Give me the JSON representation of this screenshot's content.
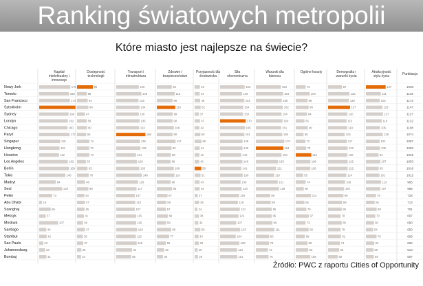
{
  "header": {
    "title": "Ranking światowych metropolii",
    "subtitle": "Które miasto jest najlepsze na świecie?"
  },
  "source": "Źródło: PWC z raportu Cities of Opportunity",
  "colors": {
    "bar": "#d4cfcb",
    "highlight": "#e36c09",
    "grid": "#dcdcdc",
    "banner": "#a6a6a6"
  },
  "chart_data": {
    "type": "bar",
    "total_label": "Punktacja",
    "categories": [
      "Nowy Jork",
      "Toronto",
      "San Francisco",
      "Sztokholm",
      "Sydney",
      "Londyn",
      "Chicago",
      "Paryż",
      "Singapur",
      "Hongkong",
      "Houston",
      "Los Angeles",
      "Berlin",
      "Tokio",
      "Madryt",
      "Seul",
      "Pekin",
      "Abu Dhabi",
      "Szanghaj",
      "Meksyk",
      "Moskwa",
      "Santiago",
      "Stambuł",
      "Sao Paulo",
      "Johannesburg",
      "Bombaj"
    ],
    "totals": [
      "1038",
      "1146",
      "1172",
      "1147",
      "1127",
      "1122",
      "1108",
      "1074",
      "1087",
      "1093",
      "1045",
      "1053",
      "1016",
      "1012",
      "965",
      "955",
      "728",
      "713",
      "701",
      "697",
      "690",
      "650",
      "609",
      "602",
      "513",
      "507"
    ],
    "series": [
      {
        "name": "Kapitał intelektualny i innowacje",
        "values": [
          176,
          168,
          174,
          205,
          166,
          162,
          160,
          172,
          118,
          115,
          112,
          162,
          169,
          148,
          94,
          130,
          73,
          16,
          65,
          37,
          107,
          40,
          42,
          23,
          33,
          41
        ],
        "highlight": "Sztokholm"
      },
      {
        "name": "Dostępność technologii",
        "values": [
          95,
          58,
          64,
          68,
          47,
          58,
          60,
          55,
          74,
          73,
          74,
          53,
          63,
          70,
          48,
          68,
          44,
          47,
          45,
          41,
          36,
          47,
          35,
          37,
          26,
          24
        ],
        "highlight": "Nowy Jork"
      },
      {
        "name": "Transport i infrastruktura",
        "values": [
          130,
          145,
          128,
          134,
          130,
          135,
          132,
          168,
          136,
          139,
          114,
          120,
          133,
          148,
          126,
          117,
          107,
          110,
          107,
          115,
          115,
          120,
          113,
          118,
          91,
          86
        ],
        "highlight": "Paryż"
      },
      {
        "name": "Zdrowie i bezpieczeństwo",
        "values": [
          93,
          112,
          98,
          115,
          99,
          98,
          106,
          98,
          117,
          92,
          88,
          86,
          106,
          110,
          86,
          95,
          67,
          59,
          57,
          69,
          58,
          90,
          77,
          56,
          46,
          38
        ],
        "highlight": "Sztokholm"
      },
      {
        "name": "Przyjazność dla środowiska",
        "values": [
          46,
          44,
          48,
          52,
          37,
          47,
          42,
          50,
          60,
          44,
          42,
          40,
          58,
          51,
          43,
          44,
          27,
          39,
          24,
          38,
          32,
          50,
          34,
          36,
          26,
          29
        ],
        "highlight": "Berlin"
      },
      {
        "name": "Siła ekonomiczna",
        "values": [
          163,
          146,
          161,
          154,
          153,
          170,
          165,
          161,
          149,
          149,
          141,
          148,
          141,
          150,
          136,
          143,
          126,
          118,
          131,
          122,
          107,
          133,
          104,
          128,
          113,
          114
        ],
        "highlight": "Londyn"
      },
      {
        "name": "Warunki dla biznesu",
        "values": [
          150,
          163,
          155,
          162,
          154,
          160,
          151,
          158,
          170,
          164,
          154,
          133,
          121,
          110,
          131,
          139,
          86,
          89,
          95,
          95,
          99,
          111,
          80,
          79,
          72,
          76
        ],
        "highlight": "Hongkong"
      },
      {
        "name": "Ogólne koszty",
        "values": [
          73,
          104,
          88,
          96,
          84,
          65,
          90,
          58,
          72,
          78,
          116,
          109,
          108,
          55,
          74,
          60,
          114,
          65,
          79,
          97,
          73,
          96,
          68,
          88,
          93,
          108
        ],
        "highlight": "Houston"
      },
      {
        "name": "Demografia i warunki życia",
        "values": [
          87,
          133,
          130,
          137,
          120,
          115,
          119,
          104,
          117,
          122,
          120,
          122,
          122,
          114,
          106,
          100,
          96,
          88,
          85,
          78,
          85,
          78,
          81,
          74,
          69,
          60
        ],
        "highlight": "Sztokholm"
      },
      {
        "name": "Atrakcyjność stylu życia",
        "values": [
          147,
          111,
          103,
          123,
          127,
          118,
          105,
          126,
          102,
          105,
          94,
          107,
          95,
          101,
          113,
          107,
          75,
          65,
          80,
          70,
          60,
          54,
          79,
          62,
          56,
          59
        ],
        "highlight": "Nowy Jork"
      }
    ]
  }
}
